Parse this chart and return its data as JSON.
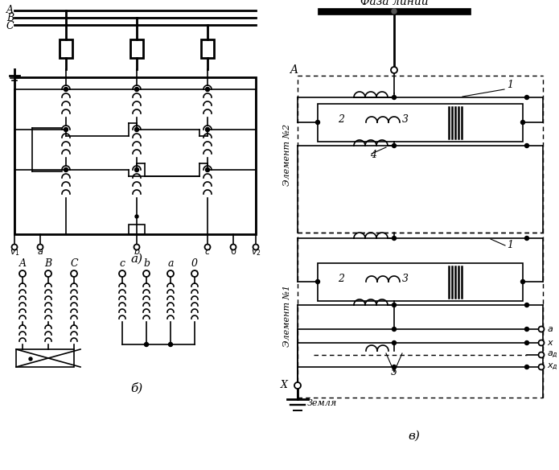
{
  "bg_color": "#ffffff",
  "faza_linii": "Фаза линии",
  "zemlya": "Земля",
  "element1_label": "Элемент №1",
  "element2_label": "Элемент №2",
  "panel_a_label": "а)",
  "panel_b_label": "б)",
  "panel_v_label": "в)"
}
